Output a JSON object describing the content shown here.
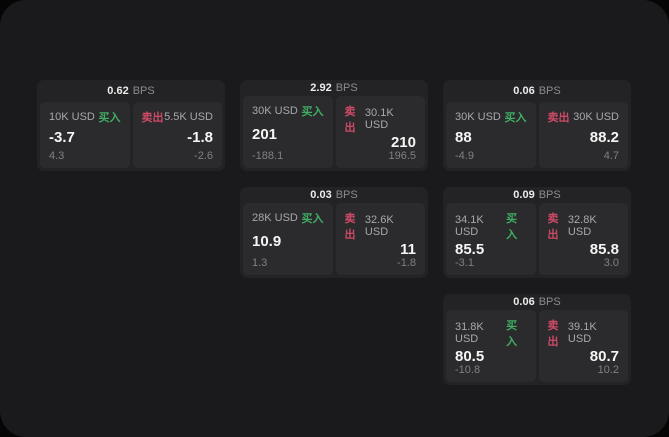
{
  "labels": {
    "buy": "买入",
    "sell": "卖出",
    "bps_unit": "BPS"
  },
  "colors": {
    "buy": "#3fae63",
    "sell": "#cd4a67",
    "surface": "#1a1a1c",
    "card": "#232325",
    "panel": "#2b2b2d"
  },
  "cards": [
    {
      "row": 1,
      "col": 1,
      "bps": "0.62",
      "buy_amount": "10K USD",
      "buy_value": "-3.7",
      "buy_sub": "4.3",
      "sell_amount": "5.5K USD",
      "sell_value": "-1.8",
      "sell_sub": "-2.6"
    },
    {
      "row": 1,
      "col": 2,
      "bps": "2.92",
      "buy_amount": "30K USD",
      "buy_value": "201",
      "buy_sub": "-188.1",
      "sell_amount": "30.1K USD",
      "sell_value": "210",
      "sell_sub": "196.5"
    },
    {
      "row": 1,
      "col": 3,
      "bps": "0.06",
      "buy_amount": "30K USD",
      "buy_value": "88",
      "buy_sub": "-4.9",
      "sell_amount": "30K USD",
      "sell_value": "88.2",
      "sell_sub": "4.7"
    },
    {
      "row": 2,
      "col": 2,
      "bps": "0.03",
      "buy_amount": "28K USD",
      "buy_value": "10.9",
      "buy_sub": "1.3",
      "sell_amount": "32.6K USD",
      "sell_value": "11",
      "sell_sub": "-1.8"
    },
    {
      "row": 2,
      "col": 3,
      "bps": "0.09",
      "buy_amount": "34.1K USD",
      "buy_value": "85.5",
      "buy_sub": "-3.1",
      "sell_amount": "32.8K USD",
      "sell_value": "85.8",
      "sell_sub": "3.0"
    },
    {
      "row": 3,
      "col": 3,
      "bps": "0.06",
      "buy_amount": "31.8K USD",
      "buy_value": "80.5",
      "buy_sub": "-10.8",
      "sell_amount": "39.1K USD",
      "sell_value": "80.7",
      "sell_sub": "10.2"
    }
  ]
}
